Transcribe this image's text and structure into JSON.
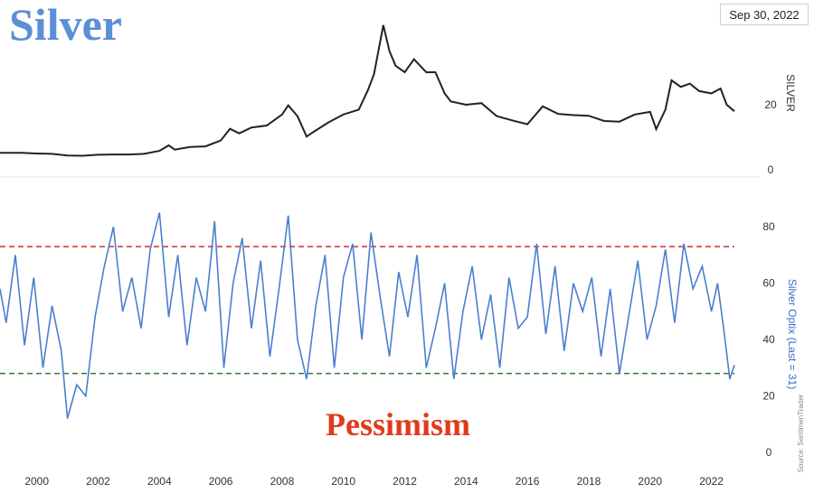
{
  "title": "Silver",
  "date_label": "Sep 30, 2022",
  "annotation": "Pessimism",
  "source": "Source: SentimenTrader",
  "colors": {
    "price": "#222222",
    "optix": "#4a7fd0",
    "upper": "#d32f2f",
    "lower": "#2e7d32",
    "title": "#5b8fd6",
    "annotation": "#e03a1e"
  },
  "chart_data": [
    {
      "type": "line",
      "ylabel": "SILVER",
      "ylim": [
        0,
        50
      ],
      "yticks": [
        0,
        20
      ],
      "series": [
        {
          "x": [
            1998.8,
            1999.5,
            2000.0,
            2000.5,
            2001.0,
            2001.5,
            2002.0,
            2002.5,
            2003.0,
            2003.5,
            2004.0,
            2004.3,
            2004.5,
            2005.0,
            2005.5,
            2006.0,
            2006.3,
            2006.6,
            2007.0,
            2007.5,
            2008.0,
            2008.2,
            2008.5,
            2008.8,
            2009.0,
            2009.5,
            2010.0,
            2010.5,
            2010.8,
            2011.0,
            2011.3,
            2011.5,
            2011.7,
            2012.0,
            2012.3,
            2012.7,
            2013.0,
            2013.3,
            2013.5,
            2014.0,
            2014.5,
            2015.0,
            2015.5,
            2016.0,
            2016.5,
            2017.0,
            2017.5,
            2018.0,
            2018.5,
            2019.0,
            2019.5,
            2020.0,
            2020.2,
            2020.5,
            2020.7,
            2021.0,
            2021.3,
            2021.6,
            2022.0,
            2022.3,
            2022.5,
            2022.75
          ],
          "values": [
            5.2,
            5.2,
            5.0,
            4.9,
            4.4,
            4.3,
            4.6,
            4.7,
            4.7,
            4.9,
            5.8,
            7.5,
            6.2,
            7.0,
            7.2,
            9.0,
            12.6,
            11.2,
            13.0,
            13.6,
            17.0,
            19.8,
            16.5,
            10.2,
            11.5,
            14.5,
            17.0,
            18.5,
            24.5,
            29.5,
            44.5,
            36.5,
            32.0,
            30.0,
            34.0,
            30.0,
            30.0,
            23.5,
            21.0,
            20.0,
            20.5,
            16.5,
            15.2,
            14.0,
            19.5,
            17.2,
            16.8,
            16.6,
            15.0,
            14.8,
            17.0,
            17.8,
            12.5,
            18.5,
            27.5,
            25.5,
            26.5,
            24.2,
            23.5,
            25.0,
            20.0,
            18.0
          ]
        }
      ]
    },
    {
      "type": "line",
      "ylabel": "Silver Optix (Last = 31)",
      "ylim": [
        0,
        90
      ],
      "yticks": [
        0,
        20,
        40,
        60,
        80
      ],
      "reference_lines": [
        73,
        28
      ],
      "xlim": [
        1998.8,
        2022.75
      ],
      "xticks": [
        "2000",
        "2002",
        "2004",
        "2006",
        "2008",
        "2010",
        "2012",
        "2014",
        "2016",
        "2018",
        "2020",
        "2022"
      ],
      "series": [
        {
          "x": [
            1998.8,
            1999.0,
            1999.3,
            1999.6,
            1999.9,
            2000.2,
            2000.5,
            2000.8,
            2001.0,
            2001.3,
            2001.6,
            2001.9,
            2002.2,
            2002.5,
            2002.8,
            2003.1,
            2003.4,
            2003.7,
            2004.0,
            2004.3,
            2004.6,
            2004.9,
            2005.2,
            2005.5,
            2005.8,
            2006.1,
            2006.4,
            2006.7,
            2007.0,
            2007.3,
            2007.6,
            2007.9,
            2008.2,
            2008.5,
            2008.8,
            2009.1,
            2009.4,
            2009.7,
            2010.0,
            2010.3,
            2010.6,
            2010.9,
            2011.2,
            2011.5,
            2011.8,
            2012.1,
            2012.4,
            2012.7,
            2013.0,
            2013.3,
            2013.6,
            2013.9,
            2014.2,
            2014.5,
            2014.8,
            2015.1,
            2015.4,
            2015.7,
            2016.0,
            2016.3,
            2016.6,
            2016.9,
            2017.2,
            2017.5,
            2017.8,
            2018.1,
            2018.4,
            2018.7,
            2019.0,
            2019.3,
            2019.6,
            2019.9,
            2020.2,
            2020.5,
            2020.8,
            2021.1,
            2021.4,
            2021.7,
            2022.0,
            2022.2,
            2022.4,
            2022.6,
            2022.75
          ],
          "values": [
            58,
            46,
            70,
            38,
            62,
            30,
            52,
            36,
            12,
            24,
            20,
            48,
            66,
            80,
            50,
            62,
            44,
            72,
            85,
            48,
            70,
            38,
            62,
            50,
            82,
            30,
            60,
            76,
            44,
            68,
            34,
            58,
            84,
            40,
            26,
            52,
            70,
            30,
            62,
            74,
            40,
            78,
            55,
            34,
            64,
            48,
            70,
            30,
            44,
            60,
            26,
            50,
            66,
            40,
            56,
            30,
            62,
            44,
            48,
            74,
            42,
            66,
            36,
            60,
            50,
            62,
            34,
            58,
            28,
            48,
            68,
            40,
            52,
            72,
            46,
            74,
            58,
            66,
            50,
            60,
            44,
            26,
            31
          ]
        }
      ]
    }
  ]
}
